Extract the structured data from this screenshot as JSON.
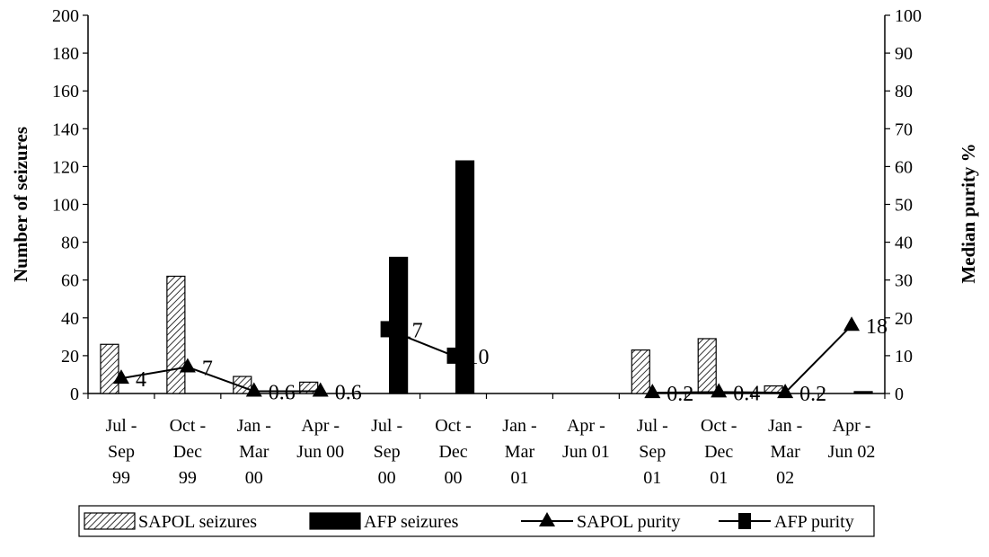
{
  "chart_data": {
    "type": "bar",
    "categories": [
      [
        "Jul -",
        "Sep",
        "99"
      ],
      [
        "Oct -",
        "Dec",
        "99"
      ],
      [
        "Jan -",
        "Mar",
        "00"
      ],
      [
        "Apr -",
        "Jun 00"
      ],
      [
        "Jul -",
        "Sep",
        "00"
      ],
      [
        "Oct -",
        "Dec",
        "00"
      ],
      [
        "Jan -",
        "Mar",
        "01"
      ],
      [
        "Apr -",
        "Jun 01"
      ],
      [
        "Jul -",
        "Sep",
        "01"
      ],
      [
        "Oct -",
        "Dec",
        "01"
      ],
      [
        "Jan -",
        "Mar",
        "02"
      ],
      [
        "Apr -",
        "Jun 02"
      ]
    ],
    "ylabel": "Number of seizures",
    "y2label": "Median purity %",
    "ylim": [
      0,
      200
    ],
    "y2lim": [
      0,
      100
    ],
    "yticks": [
      "0",
      "20",
      "40",
      "60",
      "80",
      "100",
      "120",
      "140",
      "160",
      "180",
      "200"
    ],
    "y2ticks": [
      "0",
      "10",
      "20",
      "30",
      "40",
      "50",
      "60",
      "70",
      "80",
      "90",
      "100"
    ],
    "bar_series": [
      {
        "name": "SAPOL seizures",
        "fill": "hatched",
        "values": [
          26,
          62,
          9,
          6,
          0,
          0,
          0,
          0,
          23,
          29,
          4,
          0
        ]
      },
      {
        "name": "AFP seizures",
        "fill": "#000000",
        "values": [
          0,
          0,
          0,
          0,
          72,
          123,
          0,
          0,
          0,
          0,
          0,
          1
        ]
      }
    ],
    "line_series": [
      {
        "name": "SAPOL purity",
        "marker": "triangle",
        "axis": "right",
        "points": [
          {
            "i": 0,
            "y": 4,
            "label": "4"
          },
          {
            "i": 1,
            "y": 7,
            "label": "7"
          },
          {
            "i": 2,
            "y": 0.6,
            "label": "0.6"
          },
          {
            "i": 3,
            "y": 0.6,
            "label": "0.6"
          }
        ]
      },
      {
        "name": "SAPOL purity",
        "marker": "triangle",
        "axis": "right",
        "legend": false,
        "points": [
          {
            "i": 8,
            "y": 0.2,
            "label": "0.2"
          },
          {
            "i": 9,
            "y": 0.4,
            "label": "0.4"
          },
          {
            "i": 10,
            "y": 0.2,
            "label": "0.2"
          },
          {
            "i": 11,
            "y": 18,
            "label": "18"
          }
        ]
      },
      {
        "name": "AFP purity",
        "marker": "square",
        "axis": "right",
        "points": [
          {
            "i": 4,
            "y": 17,
            "label": "17"
          },
          {
            "i": 5,
            "y": 10,
            "label": "10"
          }
        ]
      }
    ],
    "legend": {
      "position": "bottom",
      "entries": [
        "SAPOL seizures",
        "AFP seizures",
        "SAPOL purity",
        "AFP purity"
      ]
    },
    "grid": false
  }
}
